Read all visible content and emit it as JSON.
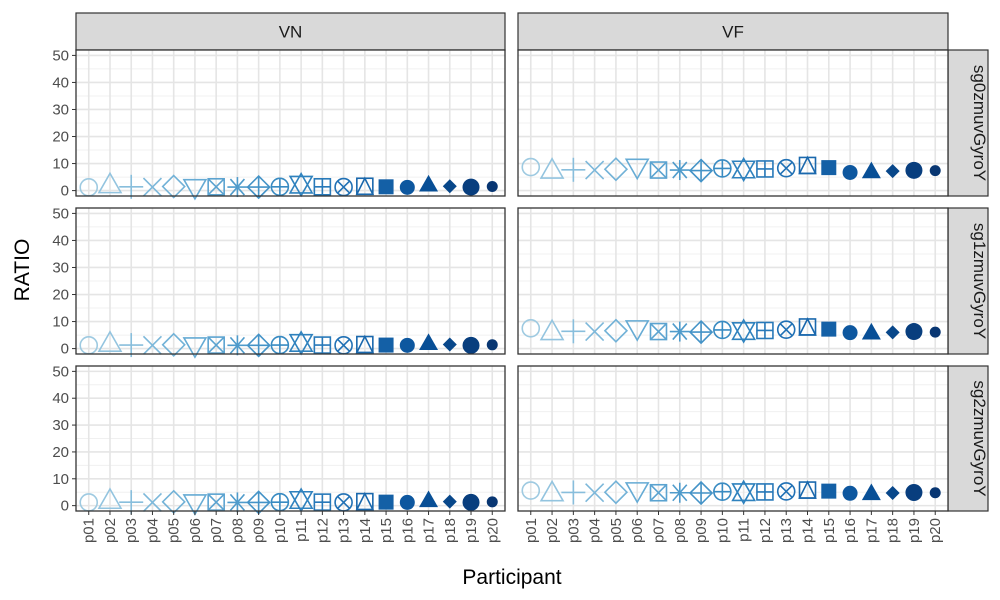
{
  "chart_data": {
    "type": "scatter",
    "xlabel": "Participant",
    "ylabel": "RATIO",
    "ylim": [
      -2,
      52
    ],
    "y_ticks": [
      0,
      10,
      20,
      30,
      40,
      50
    ],
    "categories": [
      "p01",
      "p02",
      "p03",
      "p04",
      "p05",
      "p06",
      "p07",
      "p08",
      "p09",
      "p10",
      "p11",
      "p12",
      "p13",
      "p14",
      "p15",
      "p16",
      "p17",
      "p18",
      "p19",
      "p20"
    ],
    "columns": [
      "VN",
      "VF"
    ],
    "rows": [
      "sg0zmuvGyroY",
      "sg1zmuvGyroY",
      "sg2zmuvGyroY"
    ],
    "grid": true,
    "legend": "none",
    "colors": [
      "#9ecae1",
      "#93c4df",
      "#88bedc",
      "#7db8da",
      "#72b2d7",
      "#66abd4",
      "#5ba3d0",
      "#4f9bcb",
      "#4493c7",
      "#398bc2",
      "#2f82be",
      "#2879b9",
      "#2171b5",
      "#1a68ad",
      "#1460a6",
      "#0d579f",
      "#084f96",
      "#08478a",
      "#083e7e",
      "#083672"
    ],
    "shapes": [
      "circle-open",
      "triangle-open",
      "plus",
      "cross",
      "diamond-open",
      "triangle-down-open",
      "square-cross",
      "star",
      "diamond-plus",
      "circle-plus",
      "triangles-up-down",
      "square-plus",
      "circle-cross",
      "square-triangle",
      "square-filled",
      "circle-filled",
      "triangle-filled",
      "diamond-filled",
      "circle-big-filled",
      "circle-small-filled"
    ],
    "panels": [
      {
        "row": "sg0zmuvGyroY",
        "column": "VN",
        "values": [
          1.2,
          2.3,
          1.4,
          1.3,
          1.5,
          1.0,
          1.4,
          1.3,
          1.3,
          1.4,
          2.2,
          1.4,
          1.3,
          1.6,
          1.4,
          1.2,
          2.3,
          1.6,
          1.3,
          1.5
        ]
      },
      {
        "row": "sg0zmuvGyroY",
        "column": "VF",
        "values": [
          8.7,
          7.7,
          7.7,
          7.6,
          7.9,
          8.5,
          7.6,
          7.6,
          7.4,
          8.2,
          7.8,
          8.0,
          8.3,
          9.3,
          8.5,
          6.7,
          7.2,
          7.2,
          7.5,
          7.4
        ]
      },
      {
        "row": "sg1zmuvGyroY",
        "column": "VN",
        "values": [
          1.2,
          2.1,
          1.3,
          1.2,
          1.4,
          0.9,
          1.3,
          1.2,
          1.2,
          1.3,
          2.1,
          1.3,
          1.2,
          1.5,
          1.3,
          1.2,
          2.1,
          1.5,
          1.2,
          1.4
        ]
      },
      {
        "row": "sg1zmuvGyroY",
        "column": "VF",
        "values": [
          7.5,
          6.4,
          6.4,
          6.3,
          6.6,
          7.2,
          6.3,
          6.3,
          6.1,
          6.9,
          6.5,
          6.7,
          7.0,
          8.0,
          7.2,
          5.9,
          6.0,
          6.0,
          6.3,
          6.1
        ]
      },
      {
        "row": "sg2zmuvGyroY",
        "column": "VN",
        "values": [
          1.2,
          2.1,
          1.3,
          1.2,
          1.4,
          0.9,
          1.3,
          1.2,
          1.2,
          1.3,
          2.1,
          1.3,
          1.2,
          1.5,
          1.3,
          1.2,
          2.1,
          1.5,
          1.2,
          1.4
        ]
      },
      {
        "row": "sg2zmuvGyroY",
        "column": "VF",
        "values": [
          5.6,
          4.9,
          4.9,
          4.8,
          5.0,
          5.4,
          4.8,
          4.8,
          4.7,
          5.2,
          5.0,
          5.1,
          5.3,
          5.8,
          5.4,
          4.6,
          4.7,
          4.7,
          4.9,
          4.8
        ]
      }
    ]
  }
}
